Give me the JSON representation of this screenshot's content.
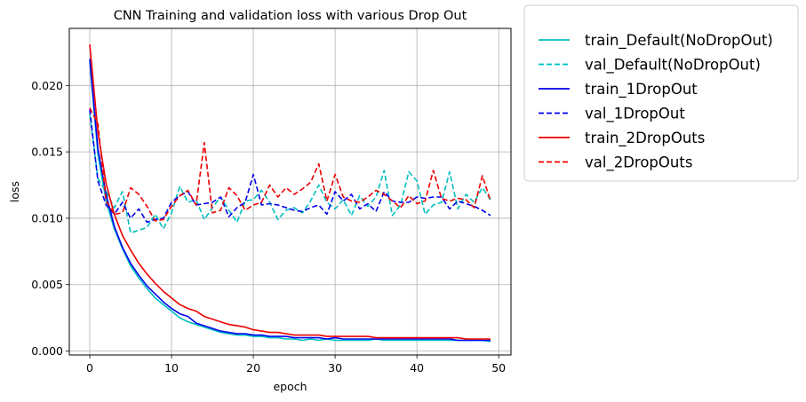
{
  "chart_data": {
    "type": "line",
    "title": "CNN Training and validation loss with various Drop Out",
    "xlabel": "epoch",
    "ylabel": "loss",
    "xlim": [
      -2.5,
      51.5
    ],
    "ylim": [
      -0.0003,
      0.0243
    ],
    "xticks": [
      0,
      10,
      20,
      30,
      40,
      50
    ],
    "yticks": [
      0.0,
      0.005,
      0.01,
      0.015,
      0.02
    ],
    "ytick_labels": [
      "0.000",
      "0.005",
      "0.010",
      "0.015",
      "0.020"
    ],
    "grid": true,
    "legend_position": "outside-right",
    "series": [
      {
        "name": "train_Default(NoDropOut)",
        "color": "#00bfbf",
        "style": "solid",
        "values": [
          0.0218,
          0.0148,
          0.0113,
          0.0092,
          0.0077,
          0.0064,
          0.0055,
          0.0047,
          0.004,
          0.0035,
          0.003,
          0.0025,
          0.0022,
          0.002,
          0.0018,
          0.0016,
          0.0014,
          0.0013,
          0.0012,
          0.0012,
          0.0011,
          0.0011,
          0.001,
          0.001,
          0.0009,
          0.0009,
          0.0008,
          0.0009,
          0.0008,
          0.0009,
          0.0008,
          0.0008,
          0.0008,
          0.0008,
          0.0008,
          0.0009,
          0.0008,
          0.0008,
          0.0008,
          0.0008,
          0.0008,
          0.0008,
          0.0008,
          0.0008,
          0.0008,
          0.0008,
          0.0008,
          0.0008,
          0.0008,
          0.0007
        ]
      },
      {
        "name": "val_Default(NoDropOut)",
        "color": "#00bfbf",
        "style": "dashed",
        "values": [
          0.0178,
          0.013,
          0.012,
          0.0108,
          0.012,
          0.0089,
          0.0091,
          0.0093,
          0.0103,
          0.0092,
          0.0104,
          0.0124,
          0.0112,
          0.0114,
          0.0099,
          0.0108,
          0.0116,
          0.0106,
          0.0097,
          0.0113,
          0.0114,
          0.0121,
          0.0112,
          0.0099,
          0.0106,
          0.0108,
          0.0104,
          0.0113,
          0.0125,
          0.0112,
          0.0107,
          0.0114,
          0.0102,
          0.0117,
          0.0109,
          0.0116,
          0.0136,
          0.0102,
          0.011,
          0.0135,
          0.0128,
          0.0103,
          0.011,
          0.0112,
          0.0135,
          0.0107,
          0.0118,
          0.0112,
          0.0123,
          0.0114
        ]
      },
      {
        "name": "train_1DropOut",
        "color": "#0000ee",
        "style": "solid",
        "values": [
          0.022,
          0.0152,
          0.0118,
          0.0094,
          0.0078,
          0.0066,
          0.0057,
          0.0049,
          0.0043,
          0.0037,
          0.0032,
          0.0028,
          0.0026,
          0.0021,
          0.0019,
          0.0017,
          0.0015,
          0.0014,
          0.0013,
          0.0013,
          0.0012,
          0.0012,
          0.0011,
          0.0011,
          0.0011,
          0.001,
          0.001,
          0.001,
          0.001,
          0.0009,
          0.001,
          0.0009,
          0.0009,
          0.0009,
          0.0009,
          0.0009,
          0.0009,
          0.0009,
          0.0009,
          0.0009,
          0.0009,
          0.0009,
          0.0009,
          0.0009,
          0.0009,
          0.0008,
          0.0008,
          0.0008,
          0.0008,
          0.0008
        ]
      },
      {
        "name": "val_1DropOut",
        "color": "#0000ee",
        "style": "dashed",
        "values": [
          0.0182,
          0.0128,
          0.011,
          0.0103,
          0.0112,
          0.01,
          0.0107,
          0.0097,
          0.0099,
          0.01,
          0.0112,
          0.0117,
          0.012,
          0.011,
          0.0111,
          0.0112,
          0.0116,
          0.0101,
          0.0108,
          0.0112,
          0.0133,
          0.011,
          0.0111,
          0.011,
          0.0108,
          0.0106,
          0.0105,
          0.0108,
          0.011,
          0.0103,
          0.012,
          0.0113,
          0.0118,
          0.0107,
          0.0111,
          0.0105,
          0.012,
          0.0113,
          0.0112,
          0.0112,
          0.0116,
          0.0115,
          0.0116,
          0.0116,
          0.0107,
          0.0113,
          0.0111,
          0.0109,
          0.0106,
          0.0102
        ]
      },
      {
        "name": "train_2DropOuts",
        "color": "#ee0000",
        "style": "solid",
        "values": [
          0.0231,
          0.0165,
          0.0126,
          0.0103,
          0.0087,
          0.0076,
          0.0066,
          0.0058,
          0.0051,
          0.0045,
          0.004,
          0.0035,
          0.0032,
          0.003,
          0.0026,
          0.0024,
          0.0022,
          0.002,
          0.0019,
          0.0018,
          0.0016,
          0.0015,
          0.0014,
          0.0014,
          0.0013,
          0.0012,
          0.0012,
          0.0012,
          0.0012,
          0.0011,
          0.0011,
          0.0011,
          0.0011,
          0.0011,
          0.0011,
          0.001,
          0.001,
          0.001,
          0.001,
          0.001,
          0.001,
          0.001,
          0.001,
          0.001,
          0.001,
          0.001,
          0.0009,
          0.0009,
          0.0009,
          0.0009
        ]
      },
      {
        "name": "val_2DropOuts",
        "color": "#ee0000",
        "style": "dashed",
        "values": [
          0.0183,
          0.0171,
          0.0113,
          0.0103,
          0.0104,
          0.0123,
          0.0118,
          0.0109,
          0.0098,
          0.0099,
          0.0109,
          0.0117,
          0.0121,
          0.011,
          0.0157,
          0.0104,
          0.0106,
          0.0123,
          0.0117,
          0.0106,
          0.011,
          0.0112,
          0.0125,
          0.0116,
          0.0123,
          0.0118,
          0.0122,
          0.0127,
          0.0141,
          0.0113,
          0.0133,
          0.0116,
          0.0113,
          0.0112,
          0.0116,
          0.0121,
          0.0118,
          0.0113,
          0.0108,
          0.0117,
          0.0111,
          0.0113,
          0.0136,
          0.0115,
          0.0113,
          0.0115,
          0.0114,
          0.0108,
          0.0132,
          0.0113
        ]
      }
    ]
  }
}
